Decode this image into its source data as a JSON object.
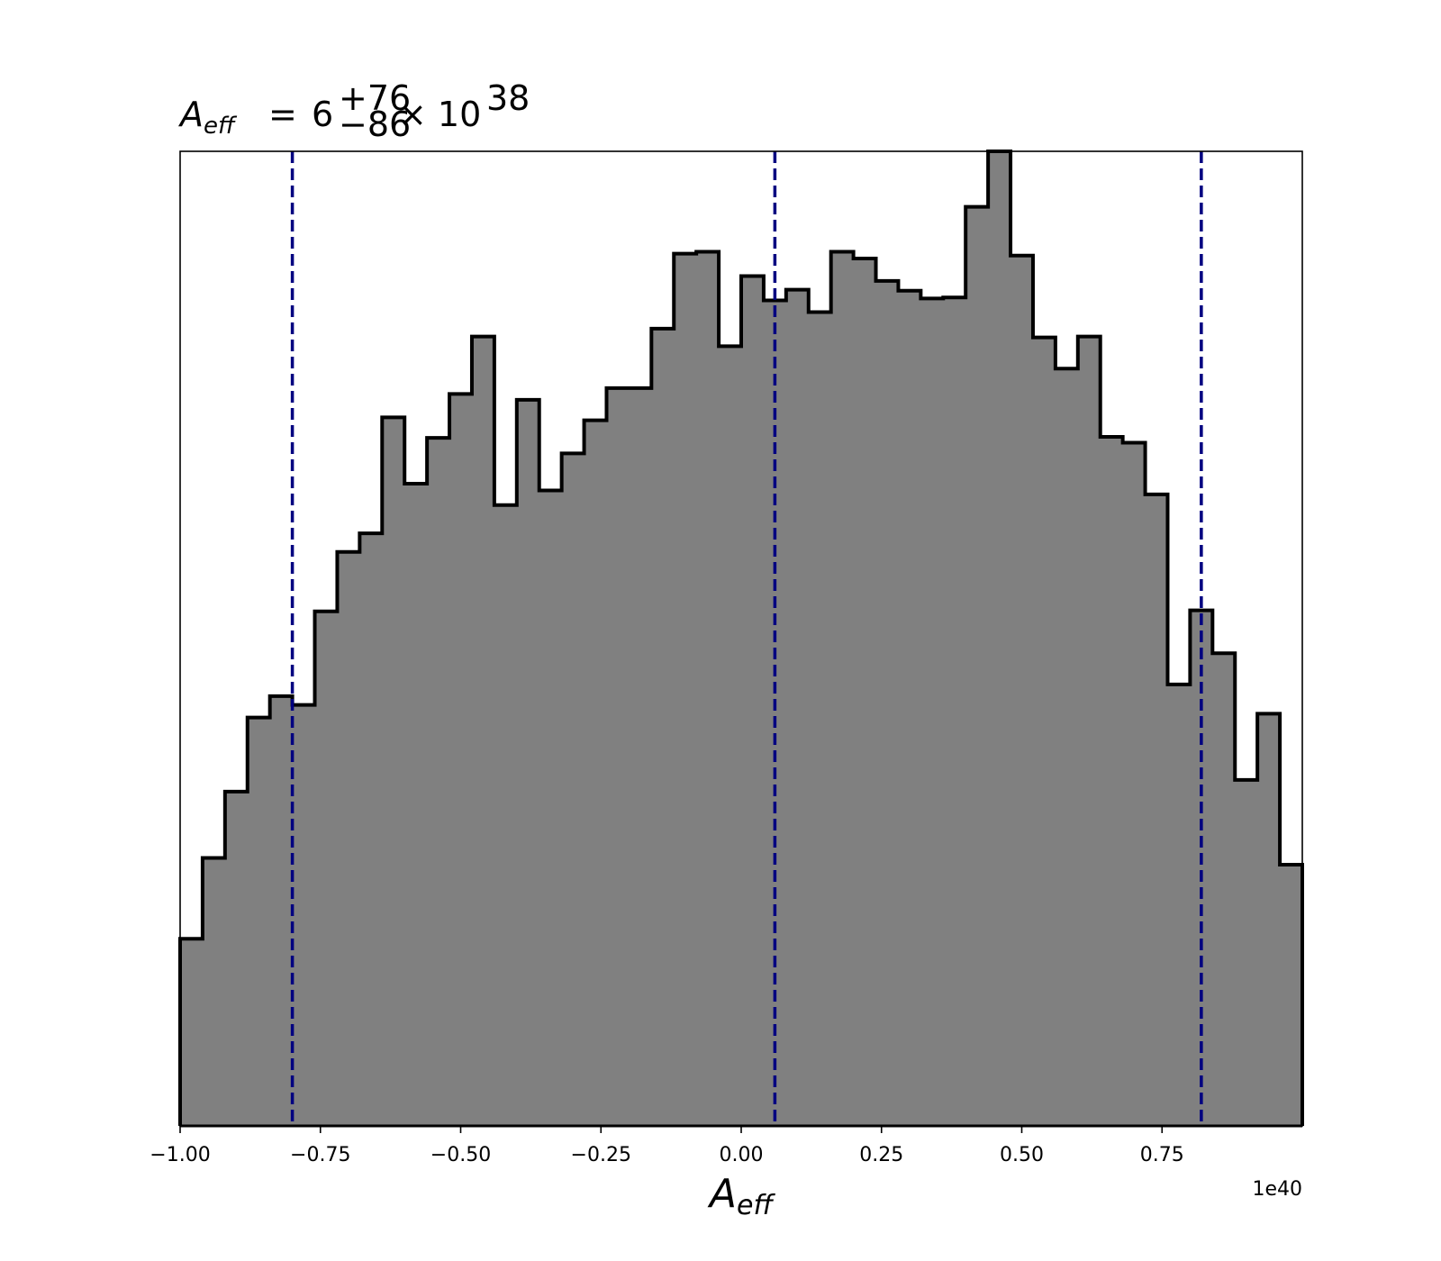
{
  "chart_data": {
    "type": "histogram",
    "title": {
      "symbol": "A",
      "subscript": "eff",
      "equals": "=",
      "base": "6",
      "upper": "+76",
      "lower": "−86",
      "times": "× 10",
      "exponent": "38"
    },
    "xlabel": {
      "symbol": "A",
      "subscript": "eff"
    },
    "x_offset_label": "1e40",
    "xlim": [
      -1.0,
      1.0
    ],
    "ylim": [
      0,
      1.0
    ],
    "x_ticks": [
      -1.0,
      -0.75,
      -0.5,
      -0.25,
      0.0,
      0.25,
      0.5,
      0.75
    ],
    "x_tick_labels": [
      "−1.00",
      "−0.75",
      "−0.50",
      "−0.25",
      "0.00",
      "0.25",
      "0.50",
      "0.75"
    ],
    "y_ticks_visible": false,
    "bins": {
      "start": -1.0,
      "width": 0.04,
      "count": 50
    },
    "values": [
      0.192,
      0.275,
      0.343,
      0.419,
      0.441,
      0.432,
      0.528,
      0.589,
      0.608,
      0.727,
      0.659,
      0.706,
      0.751,
      0.81,
      0.637,
      0.745,
      0.652,
      0.69,
      0.724,
      0.757,
      0.757,
      0.818,
      0.895,
      0.897,
      0.8,
      0.872,
      0.847,
      0.858,
      0.835,
      0.897,
      0.89,
      0.867,
      0.857,
      0.849,
      0.85,
      0.943,
      1.0,
      0.893,
      0.809,
      0.777,
      0.81,
      0.707,
      0.701,
      0.648,
      0.453,
      0.529,
      0.485,
      0.355,
      0.423,
      0.268
    ],
    "fill_color": "#808080",
    "edge_color": "#000000",
    "vlines": [
      {
        "x": -0.8,
        "style": "dashed",
        "color": "#000080"
      },
      {
        "x": 0.06,
        "style": "dashed",
        "color": "#000080"
      },
      {
        "x": 0.82,
        "style": "dashed",
        "color": "#000080"
      }
    ]
  }
}
